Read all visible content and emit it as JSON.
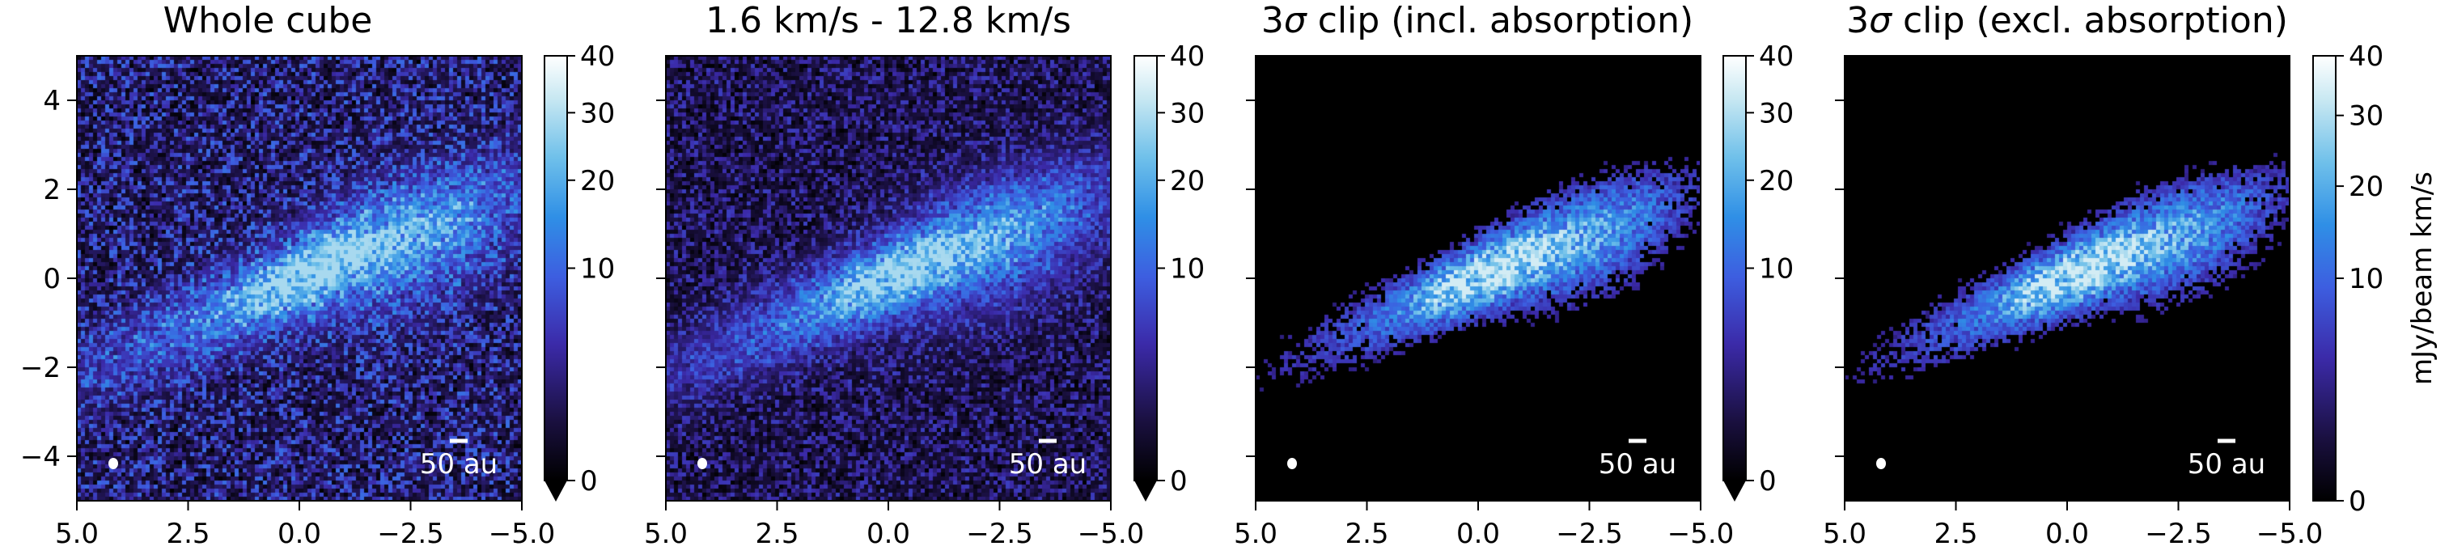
{
  "chart_data": [
    {
      "type": "heatmap",
      "title": "Whole cube",
      "xlim": [
        5.0,
        -5.0
      ],
      "ylim": [
        -5.0,
        5.0
      ],
      "x_ticks": [
        5.0,
        2.5,
        0.0,
        -2.5,
        -5.0
      ],
      "x_tick_labels": [
        "5.0",
        "2.5",
        "0.0",
        "−2.5",
        "−5.0"
      ],
      "y_ticks": [
        4,
        2,
        0,
        -2,
        -4
      ],
      "y_tick_labels": [
        "4",
        "2",
        "0",
        "−2",
        "−4"
      ],
      "scalebar_label": "50 au",
      "colorbar": {
        "range": [
          0,
          40
        ],
        "scale": "nonlinear",
        "ticks": [
          0,
          10,
          20,
          30,
          40
        ],
        "tick_labels": [
          "0",
          "10",
          "20",
          "30",
          "40"
        ],
        "extend_min": true,
        "label": ""
      },
      "background_noise": "strong"
    },
    {
      "type": "heatmap",
      "title": "1.6 km/s - 12.8 km/s",
      "xlim": [
        5.0,
        -5.0
      ],
      "ylim": [
        -5.0,
        5.0
      ],
      "x_ticks": [
        5.0,
        2.5,
        0.0,
        -2.5,
        -5.0
      ],
      "x_tick_labels": [
        "5.0",
        "2.5",
        "0.0",
        "−2.5",
        "−5.0"
      ],
      "y_ticks": [
        4,
        2,
        0,
        -2,
        -4
      ],
      "y_tick_labels": [
        "",
        "",
        "",
        "",
        ""
      ],
      "scalebar_label": "50 au",
      "colorbar": {
        "range": [
          0,
          40
        ],
        "scale": "nonlinear",
        "ticks": [
          0,
          10,
          20,
          30,
          40
        ],
        "tick_labels": [
          "0",
          "10",
          "20",
          "30",
          "40"
        ],
        "extend_min": true,
        "label": ""
      },
      "background_noise": "moderate"
    },
    {
      "type": "heatmap",
      "title_main": "3",
      "title_symbol": "σ",
      "title_rest": " clip (incl. absorption)",
      "xlim": [
        5.0,
        -5.0
      ],
      "ylim": [
        -5.0,
        5.0
      ],
      "x_ticks": [
        5.0,
        2.5,
        0.0,
        -2.5,
        -5.0
      ],
      "x_tick_labels": [
        "5.0",
        "2.5",
        "0.0",
        "−2.5",
        "−5.0"
      ],
      "y_ticks": [
        4,
        2,
        0,
        -2,
        -4
      ],
      "y_tick_labels": [
        "",
        "",
        "",
        "",
        ""
      ],
      "scalebar_label": "50 au",
      "colorbar": {
        "range": [
          0,
          40
        ],
        "scale": "nonlinear",
        "ticks": [
          0,
          10,
          20,
          30,
          40
        ],
        "tick_labels": [
          "0",
          "10",
          "20",
          "30",
          "40"
        ],
        "extend_min": true,
        "label": ""
      },
      "background_noise": "none"
    },
    {
      "type": "heatmap",
      "title_main": "3",
      "title_symbol": "σ",
      "title_rest": " clip (excl. absorption)",
      "xlim": [
        5.0,
        -5.0
      ],
      "ylim": [
        -5.0,
        5.0
      ],
      "x_ticks": [
        5.0,
        2.5,
        0.0,
        -2.5,
        -5.0
      ],
      "x_tick_labels": [
        "5.0",
        "2.5",
        "0.0",
        "−2.5",
        "−5.0"
      ],
      "y_ticks": [
        4,
        2,
        0,
        -2,
        -4
      ],
      "y_tick_labels": [
        "",
        "",
        "",
        "",
        ""
      ],
      "scalebar_label": "50 au",
      "colorbar": {
        "range": [
          0,
          40
        ],
        "scale": "nonlinear",
        "ticks": [
          0,
          10,
          20,
          30,
          40
        ],
        "tick_labels": [
          "0",
          "10",
          "20",
          "30",
          "40"
        ],
        "extend_min": false,
        "label": "mJy/beam km/s"
      },
      "background_noise": "none"
    }
  ],
  "colormap": [
    "#000000",
    "#1a1040",
    "#3b2aa8",
    "#3d5ee0",
    "#2f8fe6",
    "#6fc0ea",
    "#c8e8f2",
    "#ffffff"
  ]
}
